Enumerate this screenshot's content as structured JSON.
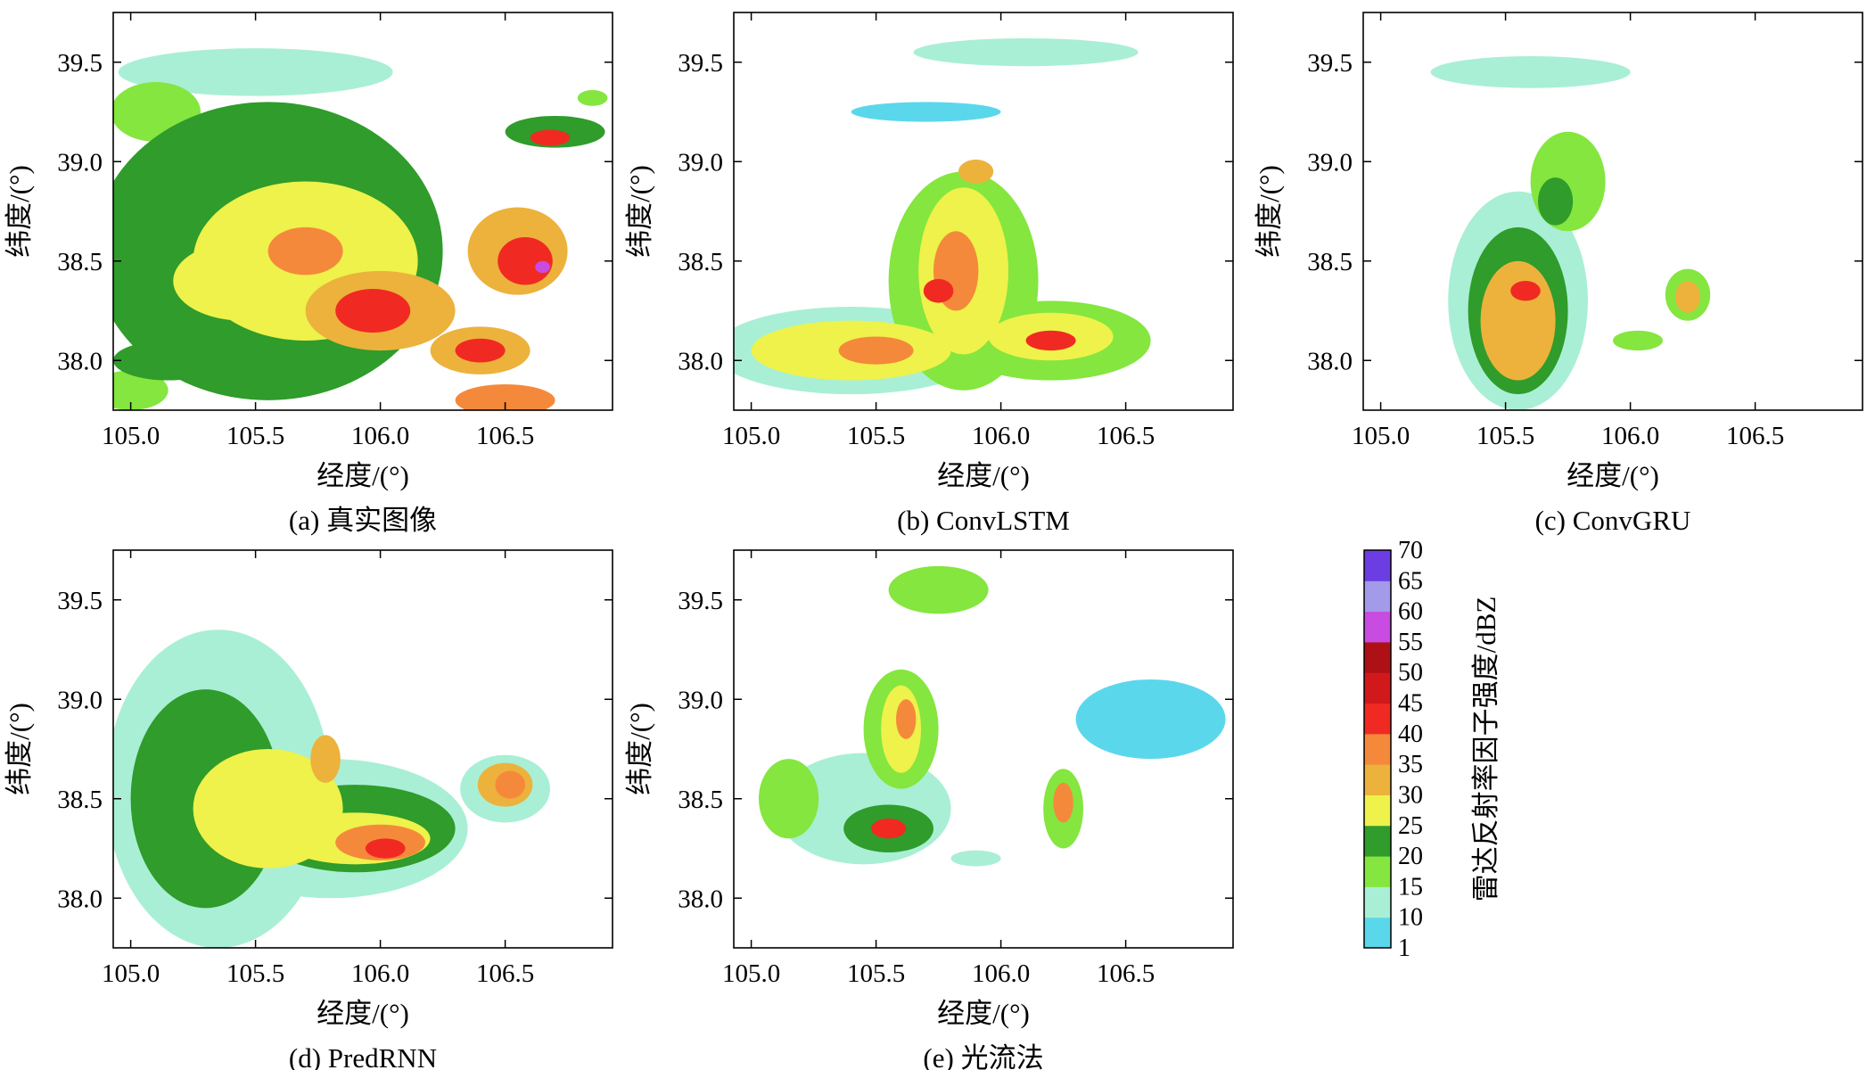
{
  "figure": {
    "colorbar": {
      "title": "雷达反射率因子强度/dBZ",
      "levels": [
        1,
        10,
        15,
        20,
        25,
        30,
        35,
        40,
        45,
        50,
        55,
        60,
        65,
        70
      ],
      "level_labels": [
        "1",
        "10",
        "15",
        "20",
        "25",
        "30",
        "35",
        "40",
        "45",
        "50",
        "55",
        "60",
        "65",
        "70"
      ],
      "colors": [
        "#5bd7ec",
        "#a9efd5",
        "#84e63f",
        "#2f9c2b",
        "#eef24a",
        "#ecb23c",
        "#f5893b",
        "#f02a22",
        "#d1181b",
        "#ae1115",
        "#c84be2",
        "#a39ae9",
        "#6c3de2"
      ]
    }
  },
  "chart_data": [
    {
      "type": "heatmap",
      "panel": "a",
      "caption": "(a) 真实图像",
      "xlabel": "经度/(°)",
      "ylabel": "纬度/(°)",
      "xlim": [
        104.93,
        106.93
      ],
      "ylim": [
        37.75,
        39.75
      ],
      "xticks": [
        105.0,
        105.5,
        106.0,
        106.5
      ],
      "xtick_labels": [
        "105.0",
        "105.5",
        "106.0",
        "106.5"
      ],
      "yticks": [
        38.0,
        38.5,
        39.0,
        39.5
      ],
      "ytick_labels": [
        "38.0",
        "38.5",
        "39.0",
        "39.5"
      ],
      "echo_cells": [
        {
          "lon": 105.55,
          "lat": 38.55,
          "rx": 0.7,
          "ry": 0.75,
          "dbz": 20
        },
        {
          "lon": 105.3,
          "lat": 38.75,
          "rx": 0.3,
          "ry": 0.35,
          "dbz": 22
        },
        {
          "lon": 105.7,
          "lat": 38.5,
          "rx": 0.45,
          "ry": 0.4,
          "dbz": 28
        },
        {
          "lon": 105.45,
          "lat": 38.4,
          "rx": 0.28,
          "ry": 0.2,
          "dbz": 27
        },
        {
          "lon": 105.7,
          "lat": 38.55,
          "rx": 0.15,
          "ry": 0.12,
          "dbz": 37
        },
        {
          "lon": 106.0,
          "lat": 38.25,
          "rx": 0.3,
          "ry": 0.2,
          "dbz": 30
        },
        {
          "lon": 105.97,
          "lat": 38.25,
          "rx": 0.15,
          "ry": 0.11,
          "dbz": 44
        },
        {
          "lon": 106.55,
          "lat": 38.55,
          "rx": 0.2,
          "ry": 0.22,
          "dbz": 30
        },
        {
          "lon": 106.58,
          "lat": 38.5,
          "rx": 0.11,
          "ry": 0.12,
          "dbz": 43
        },
        {
          "lon": 106.65,
          "lat": 38.47,
          "rx": 0.03,
          "ry": 0.03,
          "dbz": 57
        },
        {
          "lon": 106.4,
          "lat": 38.05,
          "rx": 0.2,
          "ry": 0.12,
          "dbz": 33
        },
        {
          "lon": 106.4,
          "lat": 38.05,
          "rx": 0.1,
          "ry": 0.06,
          "dbz": 42
        },
        {
          "lon": 106.5,
          "lat": 37.8,
          "rx": 0.2,
          "ry": 0.08,
          "dbz": 38
        },
        {
          "lon": 105.15,
          "lat": 38.0,
          "rx": 0.22,
          "ry": 0.1,
          "dbz": 21
        },
        {
          "lon": 105.0,
          "lat": 37.85,
          "rx": 0.15,
          "ry": 0.1,
          "dbz": 18
        },
        {
          "lon": 105.5,
          "lat": 39.45,
          "rx": 0.55,
          "ry": 0.12,
          "dbz": 14
        },
        {
          "lon": 105.1,
          "lat": 39.25,
          "rx": 0.18,
          "ry": 0.15,
          "dbz": 16
        },
        {
          "lon": 106.7,
          "lat": 39.15,
          "rx": 0.2,
          "ry": 0.08,
          "dbz": 22
        },
        {
          "lon": 106.68,
          "lat": 39.12,
          "rx": 0.08,
          "ry": 0.04,
          "dbz": 40
        },
        {
          "lon": 106.85,
          "lat": 39.32,
          "rx": 0.06,
          "ry": 0.04,
          "dbz": 15
        }
      ]
    },
    {
      "type": "heatmap",
      "panel": "b",
      "caption": "(b) ConvLSTM",
      "xlabel": "经度/(°)",
      "ylabel": "纬度/(°)",
      "xlim": [
        104.93,
        106.93
      ],
      "ylim": [
        37.75,
        39.75
      ],
      "xticks": [
        105.0,
        105.5,
        106.0,
        106.5
      ],
      "xtick_labels": [
        "105.0",
        "105.5",
        "106.0",
        "106.5"
      ],
      "yticks": [
        38.0,
        38.5,
        39.0,
        39.5
      ],
      "ytick_labels": [
        "38.0",
        "38.5",
        "39.0",
        "39.5"
      ],
      "echo_cells": [
        {
          "lon": 105.4,
          "lat": 38.05,
          "rx": 0.55,
          "ry": 0.22,
          "dbz": 14
        },
        {
          "lon": 105.85,
          "lat": 38.4,
          "rx": 0.3,
          "ry": 0.55,
          "dbz": 16
        },
        {
          "lon": 106.2,
          "lat": 38.1,
          "rx": 0.4,
          "ry": 0.2,
          "dbz": 15
        },
        {
          "lon": 105.4,
          "lat": 38.05,
          "rx": 0.4,
          "ry": 0.15,
          "dbz": 25
        },
        {
          "lon": 105.85,
          "lat": 38.45,
          "rx": 0.18,
          "ry": 0.42,
          "dbz": 26
        },
        {
          "lon": 106.2,
          "lat": 38.12,
          "rx": 0.25,
          "ry": 0.12,
          "dbz": 26
        },
        {
          "lon": 105.5,
          "lat": 38.05,
          "rx": 0.15,
          "ry": 0.07,
          "dbz": 36
        },
        {
          "lon": 105.82,
          "lat": 38.45,
          "rx": 0.09,
          "ry": 0.2,
          "dbz": 37
        },
        {
          "lon": 105.75,
          "lat": 38.35,
          "rx": 0.06,
          "ry": 0.06,
          "dbz": 42
        },
        {
          "lon": 106.2,
          "lat": 38.1,
          "rx": 0.1,
          "ry": 0.05,
          "dbz": 40
        },
        {
          "lon": 105.9,
          "lat": 38.95,
          "rx": 0.07,
          "ry": 0.06,
          "dbz": 30
        },
        {
          "lon": 106.1,
          "lat": 39.55,
          "rx": 0.45,
          "ry": 0.07,
          "dbz": 13
        },
        {
          "lon": 105.7,
          "lat": 39.25,
          "rx": 0.3,
          "ry": 0.05,
          "dbz": 6
        }
      ]
    },
    {
      "type": "heatmap",
      "panel": "c",
      "caption": "(c) ConvGRU",
      "xlabel": "经度/(°)",
      "ylabel": "纬度/(°)",
      "xlim": [
        104.93,
        106.93
      ],
      "ylim": [
        37.75,
        39.75
      ],
      "xticks": [
        105.0,
        105.5,
        106.0,
        106.5
      ],
      "xtick_labels": [
        "105.0",
        "105.5",
        "106.0",
        "106.5"
      ],
      "yticks": [
        38.0,
        38.5,
        39.0,
        39.5
      ],
      "ytick_labels": [
        "38.0",
        "38.5",
        "39.0",
        "39.5"
      ],
      "echo_cells": [
        {
          "lon": 105.55,
          "lat": 38.3,
          "rx": 0.28,
          "ry": 0.55,
          "dbz": 13
        },
        {
          "lon": 105.55,
          "lat": 38.25,
          "rx": 0.2,
          "ry": 0.42,
          "dbz": 22
        },
        {
          "lon": 105.55,
          "lat": 38.2,
          "rx": 0.15,
          "ry": 0.3,
          "dbz": 32
        },
        {
          "lon": 105.58,
          "lat": 38.35,
          "rx": 0.06,
          "ry": 0.05,
          "dbz": 41
        },
        {
          "lon": 105.75,
          "lat": 38.9,
          "rx": 0.15,
          "ry": 0.25,
          "dbz": 16
        },
        {
          "lon": 105.7,
          "lat": 38.8,
          "rx": 0.07,
          "ry": 0.12,
          "dbz": 22
        },
        {
          "lon": 105.6,
          "lat": 39.45,
          "rx": 0.4,
          "ry": 0.08,
          "dbz": 13
        },
        {
          "lon": 106.23,
          "lat": 38.33,
          "rx": 0.09,
          "ry": 0.13,
          "dbz": 18
        },
        {
          "lon": 106.23,
          "lat": 38.32,
          "rx": 0.05,
          "ry": 0.08,
          "dbz": 30
        },
        {
          "lon": 106.03,
          "lat": 38.1,
          "rx": 0.1,
          "ry": 0.05,
          "dbz": 18
        }
      ]
    },
    {
      "type": "heatmap",
      "panel": "d",
      "caption": "(d) PredRNN",
      "xlabel": "经度/(°)",
      "ylabel": "纬度/(°)",
      "xlim": [
        104.93,
        106.93
      ],
      "ylim": [
        37.75,
        39.75
      ],
      "xticks": [
        105.0,
        105.5,
        106.0,
        106.5
      ],
      "xtick_labels": [
        "105.0",
        "105.5",
        "106.0",
        "106.5"
      ],
      "yticks": [
        38.0,
        38.5,
        39.0,
        39.5
      ],
      "ytick_labels": [
        "38.0",
        "38.5",
        "39.0",
        "39.5"
      ],
      "echo_cells": [
        {
          "lon": 105.35,
          "lat": 38.55,
          "rx": 0.45,
          "ry": 0.8,
          "dbz": 13
        },
        {
          "lon": 105.8,
          "lat": 38.35,
          "rx": 0.55,
          "ry": 0.35,
          "dbz": 13
        },
        {
          "lon": 106.5,
          "lat": 38.55,
          "rx": 0.18,
          "ry": 0.17,
          "dbz": 13
        },
        {
          "lon": 105.3,
          "lat": 38.5,
          "rx": 0.3,
          "ry": 0.55,
          "dbz": 20
        },
        {
          "lon": 105.9,
          "lat": 38.35,
          "rx": 0.4,
          "ry": 0.22,
          "dbz": 20
        },
        {
          "lon": 105.55,
          "lat": 38.45,
          "rx": 0.3,
          "ry": 0.3,
          "dbz": 25
        },
        {
          "lon": 105.9,
          "lat": 38.3,
          "rx": 0.3,
          "ry": 0.13,
          "dbz": 26
        },
        {
          "lon": 105.78,
          "lat": 38.7,
          "rx": 0.06,
          "ry": 0.12,
          "dbz": 31
        },
        {
          "lon": 106.0,
          "lat": 38.28,
          "rx": 0.18,
          "ry": 0.09,
          "dbz": 36
        },
        {
          "lon": 106.02,
          "lat": 38.25,
          "rx": 0.08,
          "ry": 0.05,
          "dbz": 41
        },
        {
          "lon": 106.5,
          "lat": 38.57,
          "rx": 0.11,
          "ry": 0.11,
          "dbz": 30
        },
        {
          "lon": 106.52,
          "lat": 38.57,
          "rx": 0.06,
          "ry": 0.07,
          "dbz": 36
        }
      ]
    },
    {
      "type": "heatmap",
      "panel": "e",
      "caption": "(e) 光流法",
      "xlabel": "经度/(°)",
      "ylabel": "纬度/(°)",
      "xlim": [
        104.93,
        106.93
      ],
      "ylim": [
        37.75,
        39.75
      ],
      "xticks": [
        105.0,
        105.5,
        106.0,
        106.5
      ],
      "xtick_labels": [
        "105.0",
        "105.5",
        "106.0",
        "106.5"
      ],
      "yticks": [
        38.0,
        38.5,
        39.0,
        39.5
      ],
      "ytick_labels": [
        "38.0",
        "38.5",
        "39.0",
        "39.5"
      ],
      "echo_cells": [
        {
          "lon": 105.45,
          "lat": 38.45,
          "rx": 0.35,
          "ry": 0.28,
          "dbz": 14
        },
        {
          "lon": 105.6,
          "lat": 38.85,
          "rx": 0.15,
          "ry": 0.3,
          "dbz": 16
        },
        {
          "lon": 105.55,
          "lat": 38.35,
          "rx": 0.18,
          "ry": 0.12,
          "dbz": 24
        },
        {
          "lon": 105.6,
          "lat": 38.85,
          "rx": 0.08,
          "ry": 0.22,
          "dbz": 26
        },
        {
          "lon": 105.55,
          "lat": 38.35,
          "rx": 0.07,
          "ry": 0.05,
          "dbz": 40
        },
        {
          "lon": 105.62,
          "lat": 38.9,
          "rx": 0.04,
          "ry": 0.1,
          "dbz": 38
        },
        {
          "lon": 105.15,
          "lat": 38.5,
          "rx": 0.12,
          "ry": 0.2,
          "dbz": 18
        },
        {
          "lon": 106.25,
          "lat": 38.45,
          "rx": 0.08,
          "ry": 0.2,
          "dbz": 17
        },
        {
          "lon": 106.25,
          "lat": 38.48,
          "rx": 0.04,
          "ry": 0.1,
          "dbz": 38
        },
        {
          "lon": 105.75,
          "lat": 39.55,
          "rx": 0.2,
          "ry": 0.12,
          "dbz": 16
        },
        {
          "lon": 105.9,
          "lat": 38.2,
          "rx": 0.1,
          "ry": 0.04,
          "dbz": 14
        },
        {
          "lon": 106.6,
          "lat": 38.9,
          "rx": 0.3,
          "ry": 0.2,
          "dbz": 6
        }
      ]
    }
  ]
}
